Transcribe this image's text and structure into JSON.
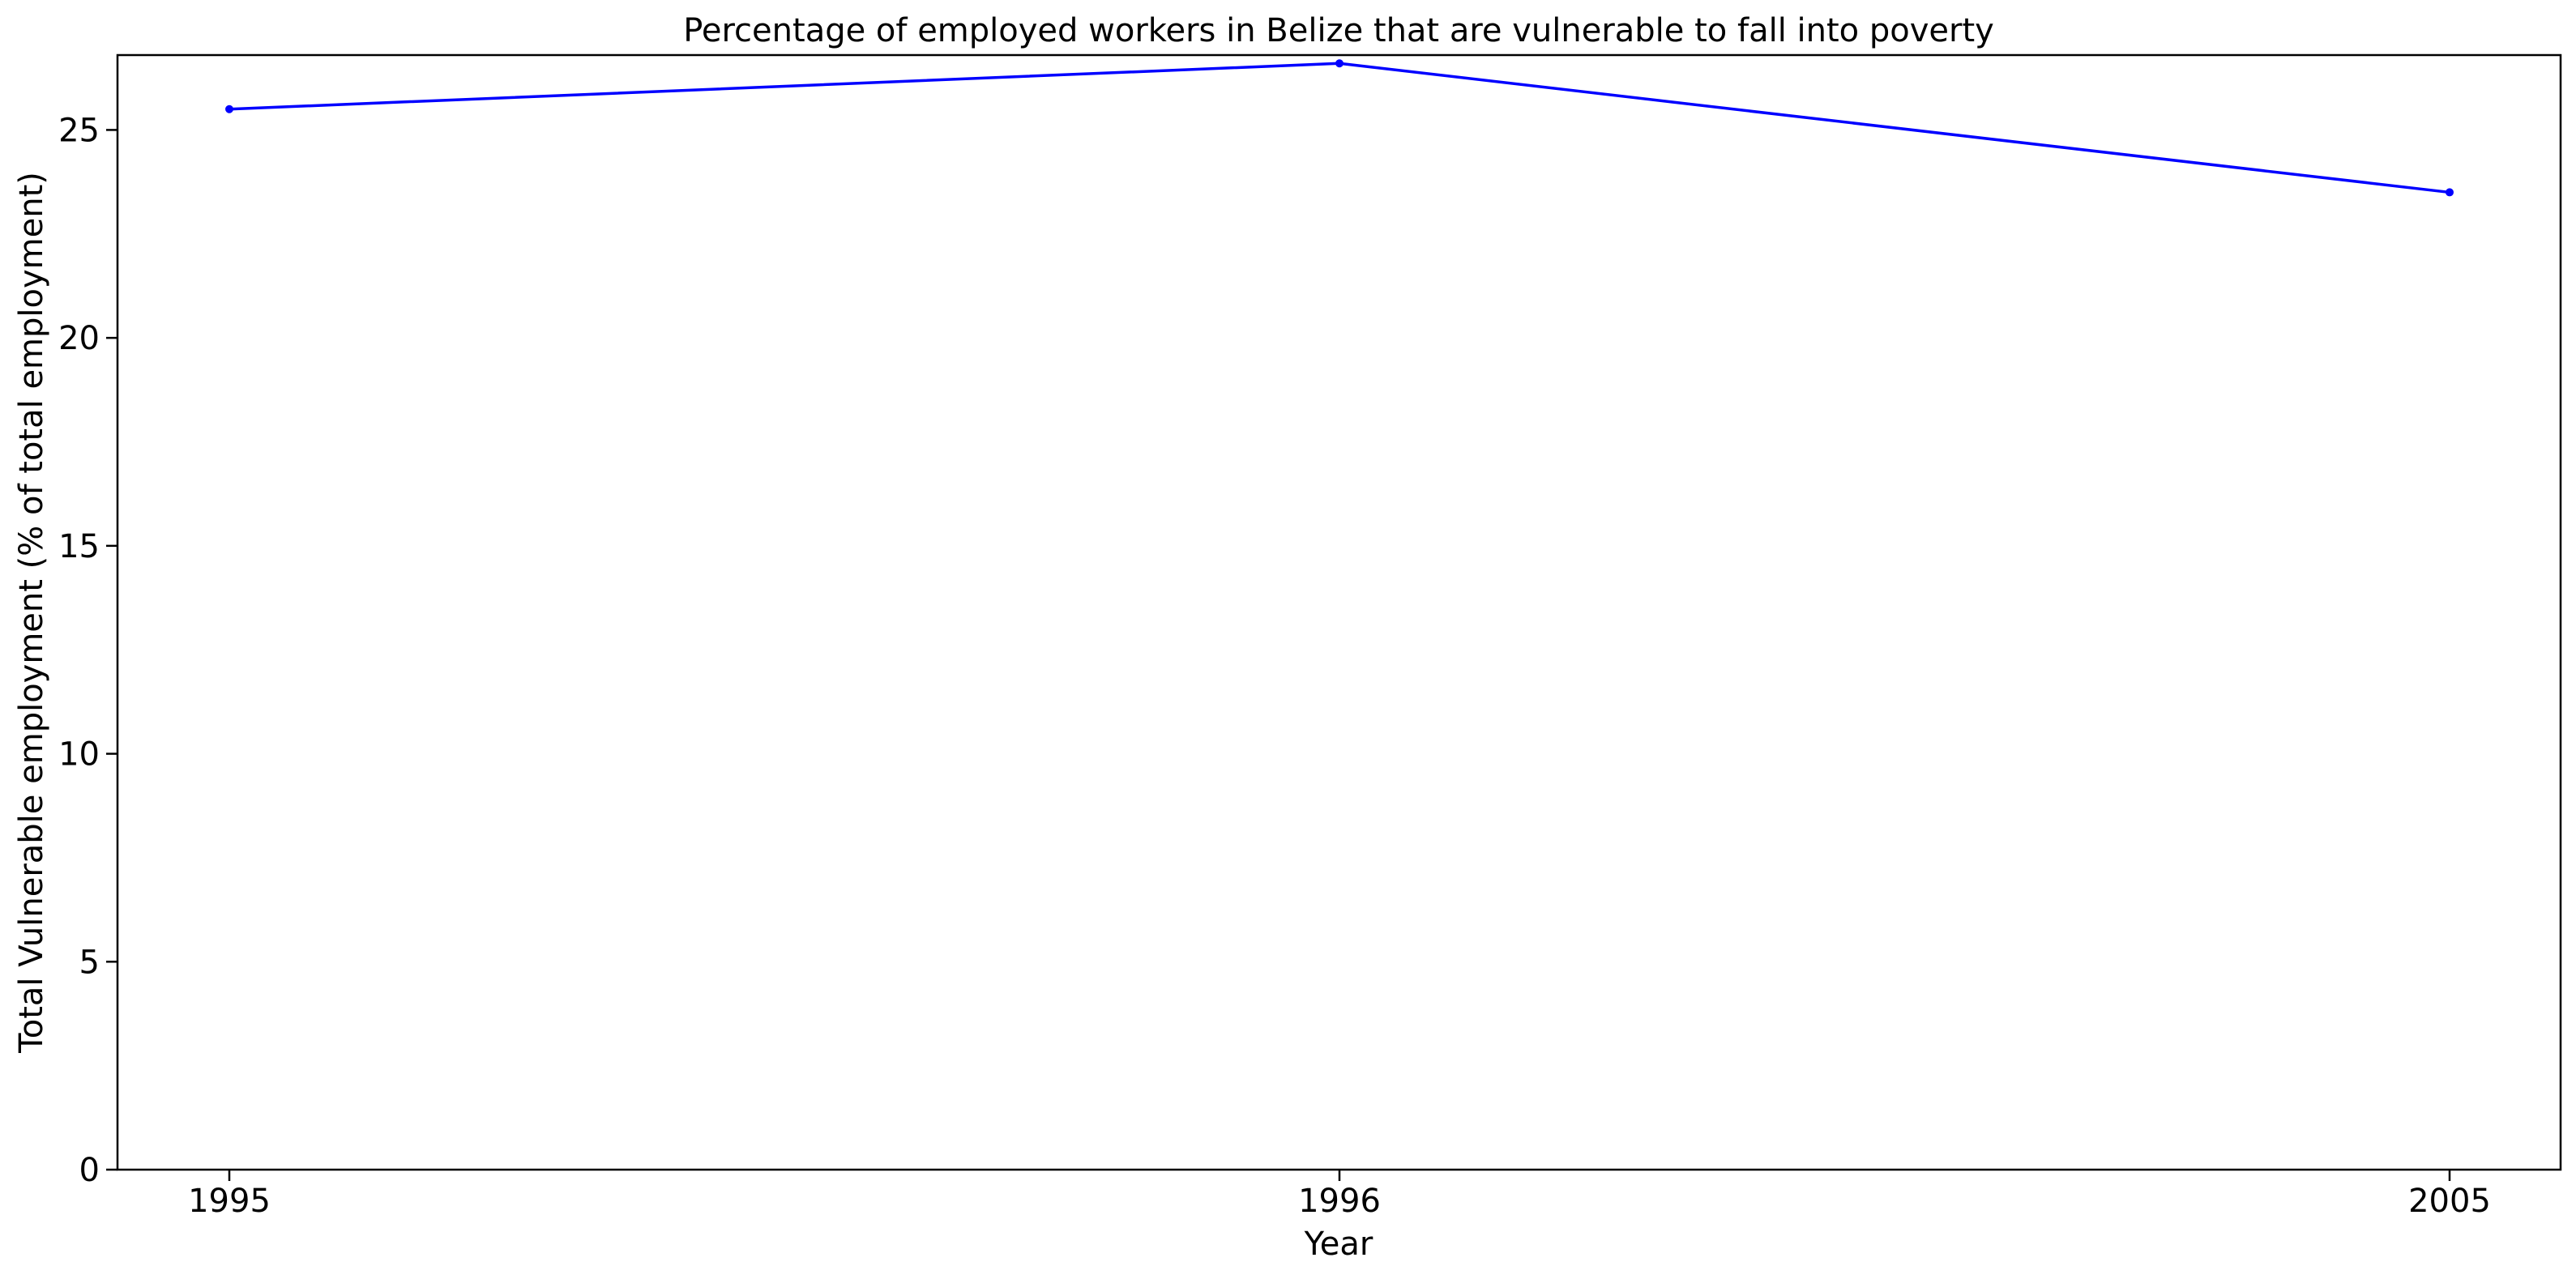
{
  "chart_data": {
    "type": "line",
    "title": "Percentage of employed workers in Belize that are vulnerable to fall into poverty",
    "xlabel": "Year",
    "ylabel": "Total Vulnerable employment (% of total employment)",
    "categories": [
      "1995",
      "1996",
      "2005"
    ],
    "series": [
      {
        "values": [
          25.5,
          26.6,
          23.5
        ]
      }
    ],
    "ylim": [
      0,
      26.8
    ],
    "yticks": [
      0,
      5,
      10,
      15,
      20,
      25
    ],
    "grid": false,
    "line_color": "#0000ff",
    "marker": "circle"
  }
}
